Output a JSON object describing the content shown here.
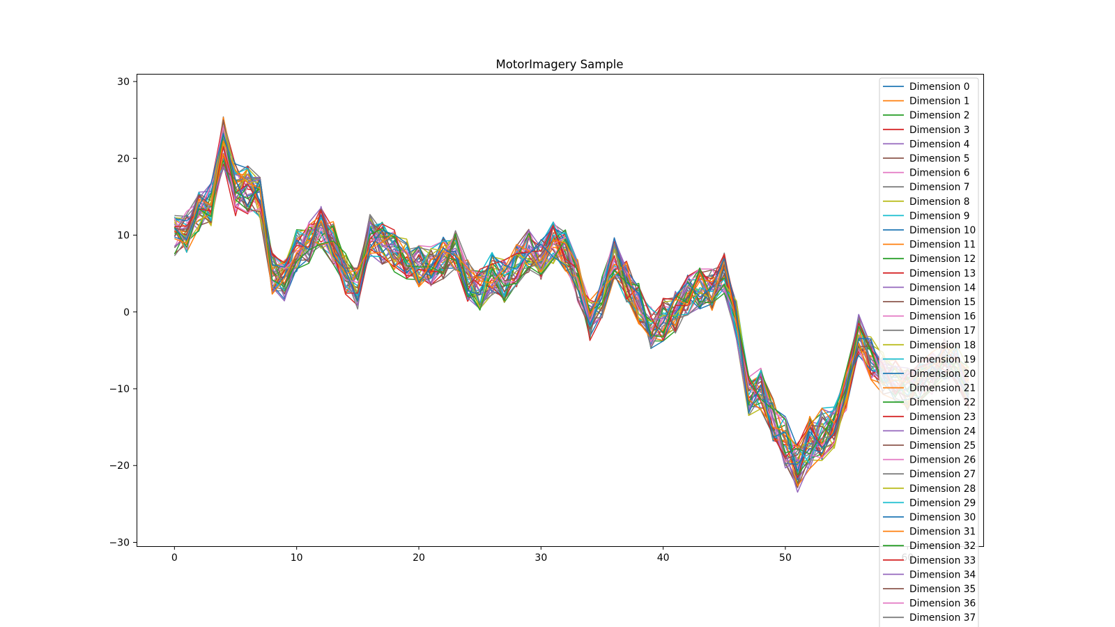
{
  "chart_data": {
    "type": "line",
    "title": "MotorImagery Sample",
    "xlabel": "",
    "ylabel": "",
    "xlim": [
      -3.1,
      66.2
    ],
    "ylim": [
      -30.5,
      31.0
    ],
    "xticks": [
      0,
      10,
      20,
      30,
      40,
      50,
      60
    ],
    "yticks": [
      -30,
      -20,
      -10,
      0,
      10,
      20,
      30
    ],
    "x": [
      0,
      1,
      2,
      3,
      4,
      5,
      6,
      7,
      8,
      9,
      10,
      11,
      12,
      13,
      14,
      15,
      16,
      17,
      18,
      19,
      20,
      21,
      22,
      23,
      24,
      25,
      26,
      27,
      28,
      29,
      30,
      31,
      32,
      33,
      34,
      35,
      36,
      37,
      38,
      39,
      40,
      41,
      42,
      43,
      44,
      45,
      46,
      47,
      48,
      49,
      50,
      51,
      52,
      53,
      54,
      55,
      56,
      57,
      58,
      59,
      60,
      61,
      62,
      63,
      64,
      65
    ],
    "mean_signal": [
      10,
      10.5,
      13,
      14,
      22,
      16,
      16,
      15,
      5,
      4,
      8,
      9,
      11,
      9,
      5,
      3,
      10,
      9,
      8,
      7,
      6,
      6,
      7,
      8,
      4,
      3,
      5,
      4,
      6,
      8,
      7,
      9,
      8,
      4,
      -1,
      2,
      7,
      4,
      1,
      -2,
      -1,
      0,
      2,
      3,
      3,
      5,
      -1,
      -11,
      -10,
      -14,
      -17,
      -20,
      -17,
      -16,
      -15,
      -10,
      -3,
      -6,
      -8,
      -9,
      -10,
      -9,
      -8,
      -6,
      -7,
      -10
    ],
    "mean_signal_note": "",
    "grid": false,
    "legend_position": "upper right",
    "series_names": [
      "Dimension 0",
      "Dimension 1",
      "Dimension 2",
      "Dimension 3",
      "Dimension 4",
      "Dimension 5",
      "Dimension 6",
      "Dimension 7",
      "Dimension 8",
      "Dimension 9",
      "Dimension 10",
      "Dimension 11",
      "Dimension 12",
      "Dimension 13",
      "Dimension 14",
      "Dimension 15",
      "Dimension 16",
      "Dimension 17",
      "Dimension 18",
      "Dimension 19",
      "Dimension 20",
      "Dimension 21",
      "Dimension 22",
      "Dimension 23",
      "Dimension 24",
      "Dimension 25",
      "Dimension 26",
      "Dimension 27",
      "Dimension 28",
      "Dimension 29",
      "Dimension 30",
      "Dimension 31",
      "Dimension 32",
      "Dimension 33",
      "Dimension 34",
      "Dimension 35",
      "Dimension 36",
      "Dimension 37"
    ],
    "colors": [
      "#1f77b4",
      "#ff7f0e",
      "#2ca02c",
      "#d62728",
      "#9467bd",
      "#8c564b",
      "#e377c2",
      "#7f7f7f",
      "#bcbd22",
      "#17becf"
    ]
  }
}
